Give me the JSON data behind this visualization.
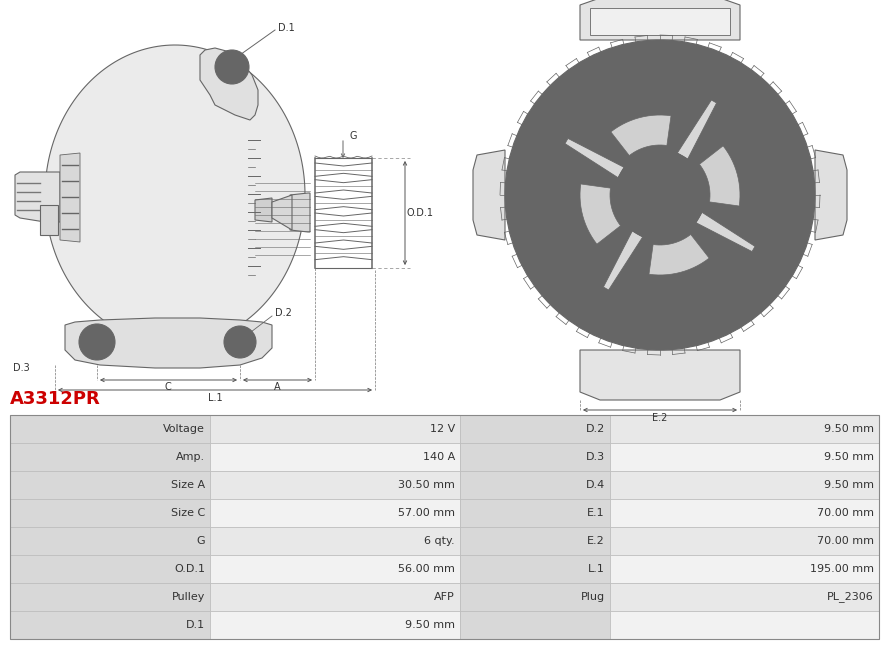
{
  "title": "A3312PR",
  "title_color": "#cc0000",
  "background_color": "#ffffff",
  "table_data": {
    "left_col": [
      "Voltage",
      "Amp.",
      "Size A",
      "Size C",
      "G",
      "O.D.1",
      "Pulley",
      "D.1"
    ],
    "left_val": [
      "12 V",
      "140 A",
      "30.50 mm",
      "57.00 mm",
      "6 qty.",
      "56.00 mm",
      "AFP",
      "9.50 mm"
    ],
    "mid_col": [
      "D.2",
      "D.3",
      "D.4",
      "E.1",
      "E.2",
      "L.1",
      "Plug",
      ""
    ],
    "mid_val": [
      "9.50 mm",
      "9.50 mm",
      "9.50 mm",
      "70.00 mm",
      "70.00 mm",
      "195.00 mm",
      "PL_2306",
      ""
    ]
  },
  "lc": "#555555",
  "lc2": "#666666",
  "fc_main": "#e8e8e8",
  "fc_mid": "#d8d8d8",
  "fc_dark": "#cccccc",
  "text_color": "#333333",
  "row_colors": [
    "#e8e8e8",
    "#f2f2f2"
  ],
  "mid_col_color": "#d4d4d4"
}
